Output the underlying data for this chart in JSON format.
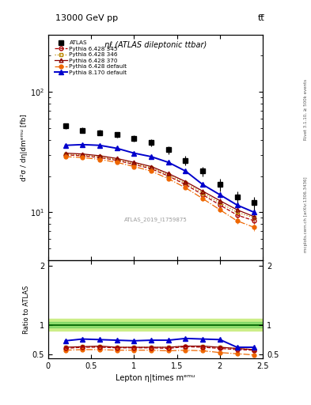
{
  "title_top": "13000 GeV pp",
  "title_right": "tt̅",
  "panel_title": "ηℓ (ATLAS dileptonic ttbar)",
  "watermark": "ATLAS_2019_I1759875",
  "right_label_top": "Rivet 3.1.10, ≥ 500k events",
  "right_label_bottom": "mcplots.cern.ch [arXiv:1306.3436]",
  "ylabel_main": "d²σ / dη|dmᵉᵐᵘ [fb]",
  "ylabel_ratio": "Ratio to ATLAS",
  "xlabel": "Lepton η|times mᵉᵐᵘ",
  "xlim": [
    0,
    2.5
  ],
  "ylim_main": [
    4,
    300
  ],
  "ylim_ratio": [
    0.43,
    2.1
  ],
  "atlas_x": [
    0.2,
    0.4,
    0.6,
    0.8,
    1.0,
    1.2,
    1.4,
    1.6,
    1.8,
    2.0,
    2.2,
    2.4
  ],
  "atlas_y": [
    52,
    48,
    46,
    44,
    41,
    38,
    33,
    27,
    22,
    17,
    13.5,
    12
  ],
  "atlas_yerr": [
    2.5,
    2.5,
    2.5,
    2.5,
    2.5,
    2.5,
    2.5,
    2.5,
    2.0,
    2.0,
    1.5,
    1.5
  ],
  "py6_345_x": [
    0.2,
    0.4,
    0.6,
    0.8,
    1.0,
    1.2,
    1.4,
    1.6,
    1.8,
    2.0,
    2.2,
    2.4
  ],
  "py6_345_y": [
    30,
    29.5,
    28.5,
    27,
    25,
    23,
    20,
    17,
    14,
    11.5,
    9.5,
    8.5
  ],
  "py6_346_x": [
    0.2,
    0.4,
    0.6,
    0.8,
    1.0,
    1.2,
    1.4,
    1.6,
    1.8,
    2.0,
    2.2,
    2.4
  ],
  "py6_346_y": [
    30.5,
    30,
    29,
    27.5,
    25.5,
    23.5,
    20.5,
    17.5,
    14.5,
    12,
    10,
    9.0
  ],
  "py6_370_x": [
    0.2,
    0.4,
    0.6,
    0.8,
    1.0,
    1.2,
    1.4,
    1.6,
    1.8,
    2.0,
    2.2,
    2.4
  ],
  "py6_370_y": [
    31,
    30.5,
    29.5,
    28,
    26,
    24,
    21,
    18,
    15,
    12.5,
    10.5,
    9.2
  ],
  "py6_def_x": [
    0.2,
    0.4,
    0.6,
    0.8,
    1.0,
    1.2,
    1.4,
    1.6,
    1.8,
    2.0,
    2.2,
    2.4
  ],
  "py6_def_y": [
    29,
    28.5,
    27.5,
    26,
    24,
    22,
    19,
    16,
    13,
    10.5,
    8.5,
    7.5
  ],
  "py8_def_x": [
    0.2,
    0.4,
    0.6,
    0.8,
    1.0,
    1.2,
    1.4,
    1.6,
    1.8,
    2.0,
    2.2,
    2.4
  ],
  "py8_def_y": [
    36,
    36.5,
    36,
    34,
    31,
    29,
    26,
    22,
    17,
    14,
    11.5,
    10
  ],
  "ratio_py6_345": [
    0.6,
    0.62,
    0.62,
    0.61,
    0.61,
    0.61,
    0.6,
    0.63,
    0.62,
    0.6,
    0.58,
    0.57
  ],
  "ratio_py6_346": [
    0.62,
    0.63,
    0.63,
    0.62,
    0.62,
    0.62,
    0.62,
    0.64,
    0.63,
    0.62,
    0.6,
    0.58
  ],
  "ratio_py6_370": [
    0.62,
    0.63,
    0.64,
    0.62,
    0.62,
    0.62,
    0.62,
    0.64,
    0.64,
    0.62,
    0.6,
    0.58
  ],
  "ratio_py6_def": [
    0.57,
    0.58,
    0.58,
    0.57,
    0.57,
    0.57,
    0.56,
    0.57,
    0.56,
    0.53,
    0.51,
    0.49
  ],
  "ratio_py8_def": [
    0.73,
    0.76,
    0.75,
    0.74,
    0.73,
    0.74,
    0.74,
    0.77,
    0.76,
    0.75,
    0.62,
    0.62
  ],
  "ratio_yerr_py6_345": [
    0.015,
    0.015,
    0.015,
    0.015,
    0.015,
    0.015,
    0.015,
    0.015,
    0.015,
    0.015,
    0.015,
    0.015
  ],
  "ratio_yerr_py8_def": [
    0.025,
    0.025,
    0.025,
    0.025,
    0.025,
    0.025,
    0.025,
    0.025,
    0.025,
    0.025,
    0.025,
    0.025
  ],
  "color_atlas": "#000000",
  "color_py6_345": "#aa0000",
  "color_py6_346": "#bb8800",
  "color_py6_370": "#880000",
  "color_py6_def": "#ee6600",
  "color_py8_def": "#0000cc",
  "green_band_inner": "#55cc55",
  "green_band_outer": "#ccee88",
  "green_line_color": "#006600",
  "bg_color": "#ffffff"
}
